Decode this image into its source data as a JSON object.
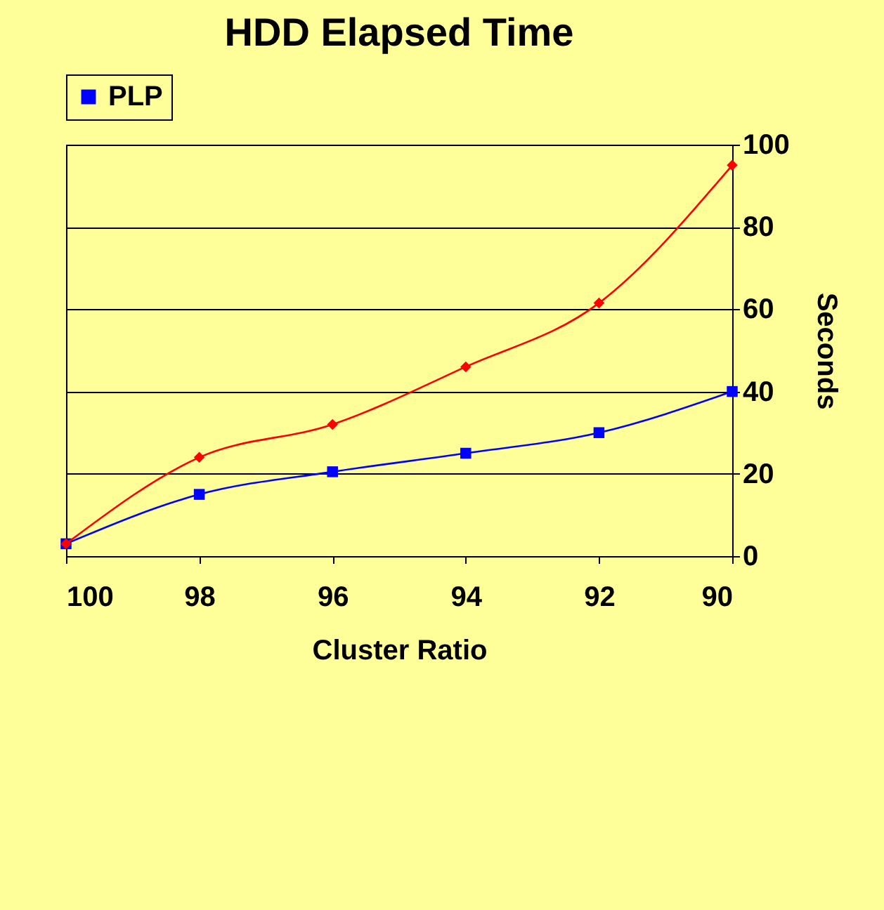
{
  "chart_data": {
    "type": "line",
    "title": "HDD Elapsed Time",
    "xlabel": "Cluster Ratio",
    "ylabel": "Seconds",
    "x": [
      100,
      98,
      96,
      94,
      92,
      90
    ],
    "xlim": [
      100,
      90
    ],
    "xticks": [
      100,
      98,
      96,
      94,
      92,
      90
    ],
    "ylim": [
      0,
      100
    ],
    "yticks": [
      0,
      20,
      40,
      60,
      80,
      100
    ],
    "grid": "y",
    "legend": "top",
    "line_style": "solid",
    "series": [
      {
        "color": "#ff0000",
        "marker": "diamond",
        "values": [
          3,
          24,
          32,
          46,
          61.5,
          95
        ]
      },
      {
        "name": "PLP",
        "color": "#0000ff",
        "marker": "square",
        "values": [
          3,
          15,
          20.5,
          25,
          30,
          40
        ]
      }
    ]
  }
}
